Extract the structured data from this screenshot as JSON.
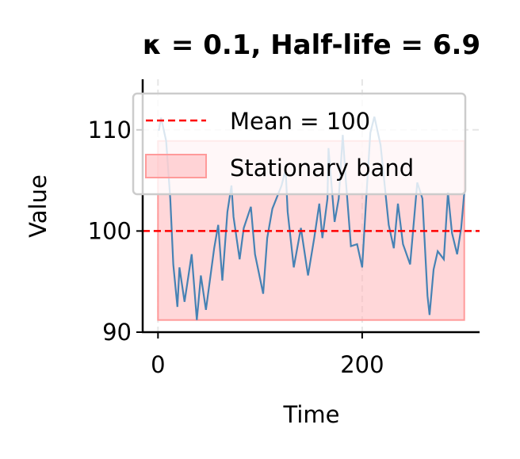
{
  "chart_data": {
    "type": "line",
    "title": "κ = 0.1, Half-life = 6.9",
    "xlabel": "Time",
    "ylabel": "Value",
    "xlim": [
      -15,
      315
    ],
    "ylim": [
      90,
      115
    ],
    "xticks": [
      0,
      200
    ],
    "yticks": [
      90,
      100,
      110
    ],
    "grid": true,
    "legend_placement": "top-left",
    "colors": {
      "series": "#4682b4",
      "mean": "#ff0000",
      "band": "#ffb6b9"
    },
    "mean": {
      "name": "Mean = 100",
      "value": 100
    },
    "band": {
      "name": "Stationary band",
      "x": [
        0,
        300
      ],
      "y": [
        91.2,
        108.9
      ]
    },
    "series": [
      {
        "x": [
          0,
          1,
          3,
          8,
          12,
          15,
          19,
          21,
          26,
          33,
          38,
          42,
          47,
          55,
          59,
          63,
          68,
          72,
          74,
          80,
          84,
          91,
          95,
          103,
          107,
          112,
          121,
          125,
          127,
          133,
          140,
          147,
          153,
          158,
          161,
          166,
          167,
          173,
          177,
          181,
          184,
          189,
          195,
          200,
          204,
          208,
          212,
          218,
          226,
          231,
          235,
          240,
          247,
          254,
          259,
          264,
          266,
          270,
          274,
          280,
          284,
          288,
          293,
          297,
          300
        ],
        "y": [
          110,
          110.0,
          111.2,
          108.9,
          103.2,
          96.7,
          92.5,
          96.4,
          93.0,
          97.7,
          91.2,
          95.6,
          92.2,
          98.3,
          100.6,
          95.1,
          101.9,
          104.5,
          101.4,
          97.2,
          100.3,
          102.4,
          97.7,
          93.8,
          99.3,
          102.2,
          104.5,
          106.1,
          101.9,
          96.4,
          100.3,
          95.6,
          99.3,
          102.7,
          99.3,
          103.2,
          108.2,
          100.9,
          103.2,
          109.5,
          105.0,
          98.5,
          98.7,
          96.4,
          103.2,
          109.7,
          111.3,
          108.5,
          100.6,
          98.3,
          102.7,
          98.7,
          96.7,
          104.8,
          103.2,
          93.6,
          91.7,
          96.2,
          98.0,
          97.2,
          103.8,
          99.8,
          97.7,
          100.3,
          103.8
        ]
      }
    ]
  }
}
